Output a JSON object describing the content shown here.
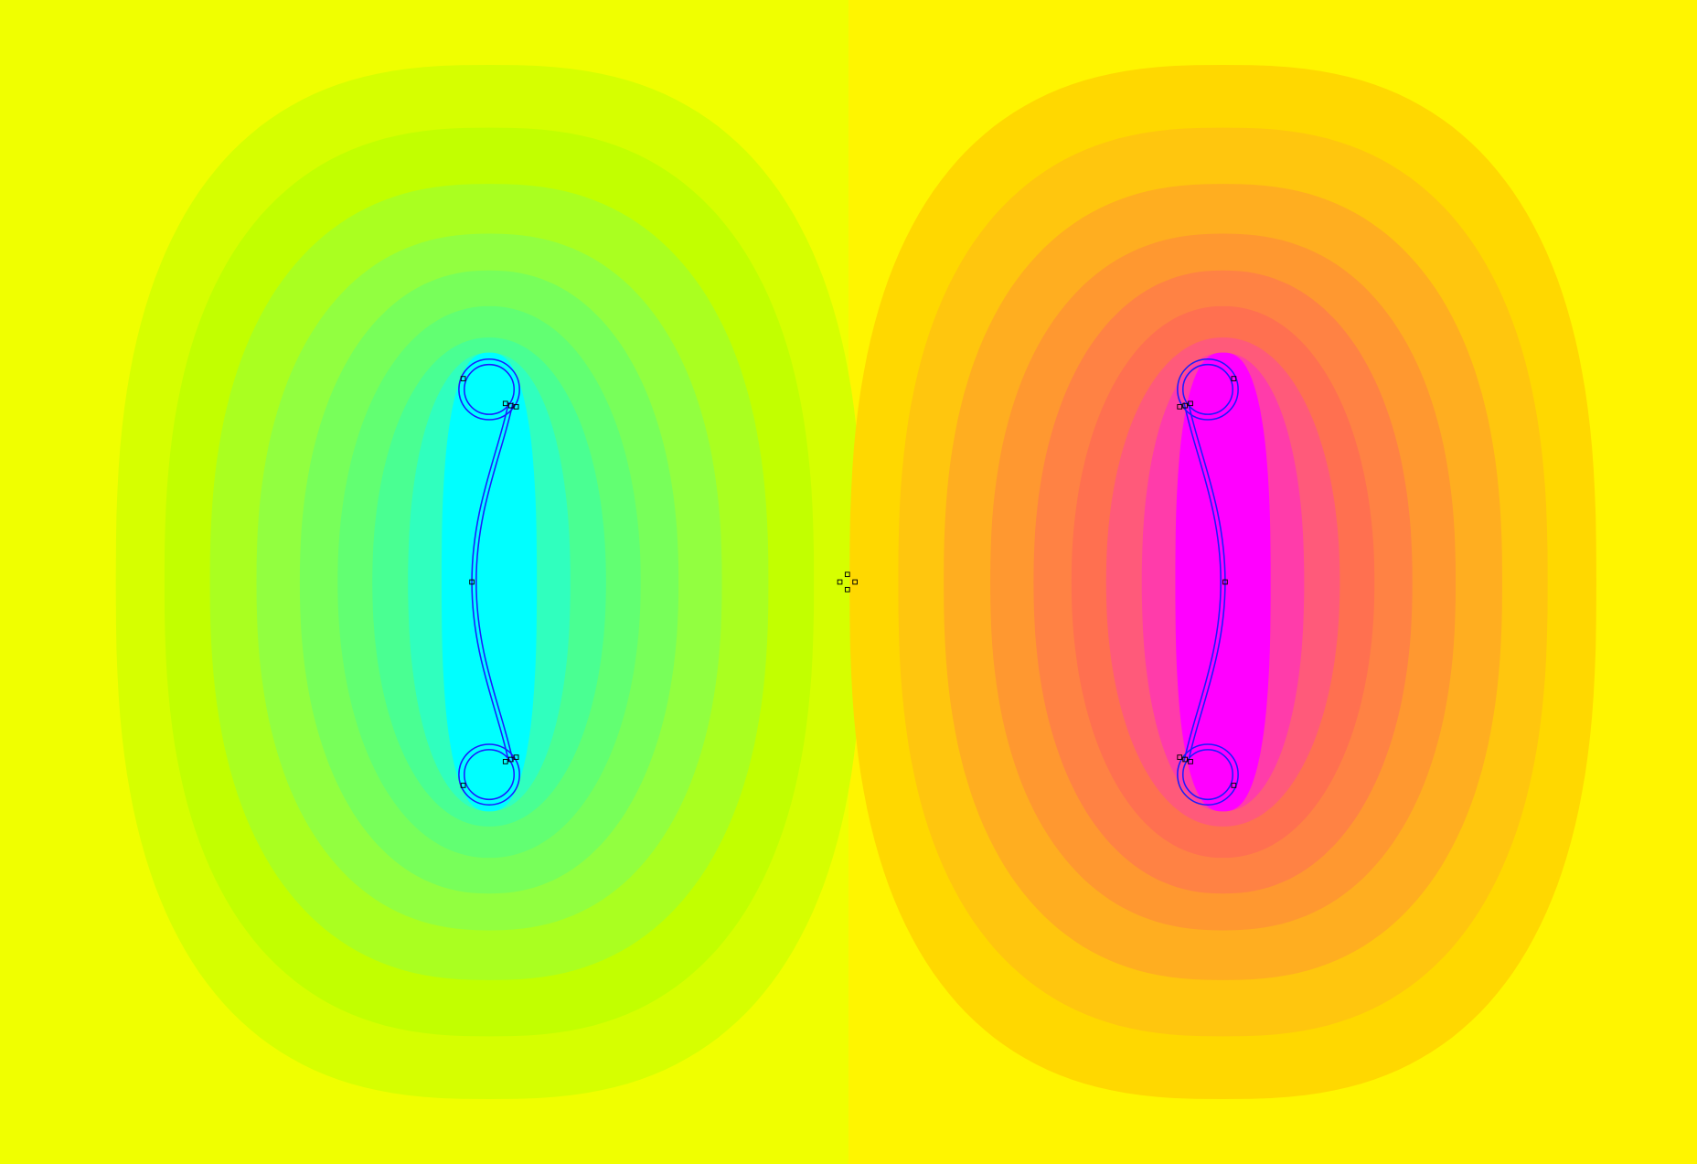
{
  "plot": {
    "type": "heatmap",
    "description_visible_text": "",
    "background": {
      "left": "#f0ff00",
      "right": "#fff500"
    },
    "left_lobe_bands": [
      "#d6ff00",
      "#c2ff00",
      "#aaff20",
      "#92ff40",
      "#78ff5a",
      "#62ff72",
      "#4aff92",
      "#30ffbe",
      "#00ffff"
    ],
    "right_lobe_bands": [
      "#ffd800",
      "#ffc60e",
      "#ffae20",
      "#ff9830",
      "#ff8244",
      "#ff7050",
      "#ff5a7a",
      "#ff3caa",
      "#ff00ff"
    ],
    "coil_line_color": "#1a1aff",
    "node_marker_color": "#000000"
  }
}
